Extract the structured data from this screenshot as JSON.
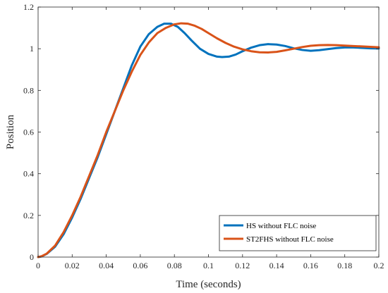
{
  "chart_data": {
    "type": "line",
    "xlabel": "Time (seconds)",
    "ylabel": "Position",
    "xlim": [
      0,
      0.2
    ],
    "ylim": [
      0,
      1.2
    ],
    "xticks": [
      0,
      0.02,
      0.04,
      0.06,
      0.08,
      0.1,
      0.12,
      0.14,
      0.16,
      0.18,
      0.2
    ],
    "xtick_labels": [
      "0",
      "0.02",
      "0.04",
      "0.06",
      "0.08",
      "0.1",
      "0.12",
      "0.14",
      "0.16",
      "0.18",
      "0.2"
    ],
    "yticks": [
      0,
      0.2,
      0.4,
      0.6,
      0.8,
      1,
      1.2
    ],
    "ytick_labels": [
      "0",
      "0.2",
      "0.4",
      "0.6",
      "0.8",
      "1",
      "1.2"
    ],
    "grid": false,
    "legend_position": "bottom-right",
    "series": [
      {
        "name": "HS without FLC noise",
        "color": "#0072BD",
        "x": [
          0,
          0.002,
          0.005,
          0.01,
          0.015,
          0.02,
          0.025,
          0.03,
          0.035,
          0.04,
          0.045,
          0.05,
          0.055,
          0.06,
          0.065,
          0.07,
          0.074,
          0.078,
          0.082,
          0.086,
          0.09,
          0.095,
          0.1,
          0.105,
          0.108,
          0.112,
          0.116,
          0.12,
          0.125,
          0.13,
          0.135,
          0.14,
          0.145,
          0.15,
          0.155,
          0.16,
          0.165,
          0.17,
          0.175,
          0.18,
          0.185,
          0.19,
          0.195,
          0.2
        ],
        "y": [
          0,
          0.003,
          0.015,
          0.05,
          0.11,
          0.19,
          0.28,
          0.38,
          0.48,
          0.59,
          0.7,
          0.81,
          0.92,
          1.01,
          1.07,
          1.105,
          1.12,
          1.12,
          1.105,
          1.075,
          1.04,
          1.0,
          0.975,
          0.962,
          0.96,
          0.962,
          0.972,
          0.988,
          1.005,
          1.017,
          1.022,
          1.02,
          1.013,
          1.002,
          0.994,
          0.99,
          0.993,
          0.998,
          1.003,
          1.006,
          1.006,
          1.004,
          1.002,
          1.001
        ]
      },
      {
        "name": "ST2FHS without FLC noise",
        "color": "#D95319",
        "x": [
          0,
          0.002,
          0.005,
          0.01,
          0.015,
          0.02,
          0.025,
          0.03,
          0.035,
          0.04,
          0.045,
          0.05,
          0.055,
          0.06,
          0.065,
          0.07,
          0.075,
          0.08,
          0.084,
          0.088,
          0.092,
          0.096,
          0.1,
          0.105,
          0.11,
          0.115,
          0.12,
          0.125,
          0.13,
          0.135,
          0.14,
          0.145,
          0.15,
          0.155,
          0.16,
          0.165,
          0.17,
          0.175,
          0.18,
          0.185,
          0.19,
          0.195,
          0.2
        ],
        "y": [
          0,
          0.004,
          0.016,
          0.055,
          0.12,
          0.2,
          0.29,
          0.39,
          0.49,
          0.6,
          0.7,
          0.8,
          0.89,
          0.97,
          1.03,
          1.075,
          1.1,
          1.117,
          1.122,
          1.12,
          1.11,
          1.095,
          1.075,
          1.05,
          1.028,
          1.01,
          0.997,
          0.988,
          0.983,
          0.982,
          0.985,
          0.992,
          1.0,
          1.008,
          1.014,
          1.017,
          1.018,
          1.017,
          1.015,
          1.013,
          1.011,
          1.009,
          1.007
        ]
      }
    ]
  }
}
